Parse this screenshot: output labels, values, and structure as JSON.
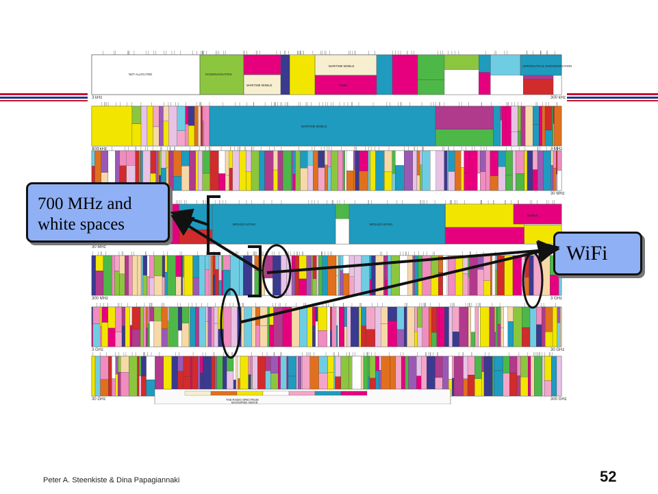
{
  "slide": {
    "footer_credit": "Peter A. Steenkiste & Dina Papagiannaki",
    "slide_number": "52",
    "callouts": {
      "white_spaces": "700 MHz and white spaces",
      "wifi": "WiFi"
    }
  },
  "spectrum_chart": {
    "rows": [
      {
        "start": "3 kHz",
        "end": "300 kHz"
      },
      {
        "start": "300 kHz",
        "end": "3 MHz"
      },
      {
        "start": "3 MHz",
        "end": "30 MHz"
      },
      {
        "start": "30 MHz",
        "end": "300 MHz"
      },
      {
        "start": "300 MHz",
        "end": "3 GHz"
      },
      {
        "start": "3 GHz",
        "end": "30 GHz"
      },
      {
        "start": "30 GHz",
        "end": "300 GHz"
      }
    ],
    "band_labels": {
      "not_allocated": "NOT ALLOCATED",
      "radionavigation": "RADIONAVIGATION",
      "maritime_mobile": "MARITIME MOBILE",
      "fixed": "FIXED",
      "aeronautical": "AERONAUTICAL RADIONAVIGATION",
      "broadcasting": "BROADCASTING",
      "mobile": "MOBILE"
    },
    "legend_title": "THE RADIO SPECTRUM",
    "legend_subtitle": "MAGNIFIED ABOVE",
    "colors": {
      "rule_red": "#c8102e",
      "rule_blue": "#1f3a8a",
      "callout_fill": "#8fb0f5",
      "magenta": "#e6007e",
      "teal": "#1e9bbf",
      "yellow": "#f2e600",
      "orange": "#e0701e",
      "green": "#8cc63f"
    }
  }
}
